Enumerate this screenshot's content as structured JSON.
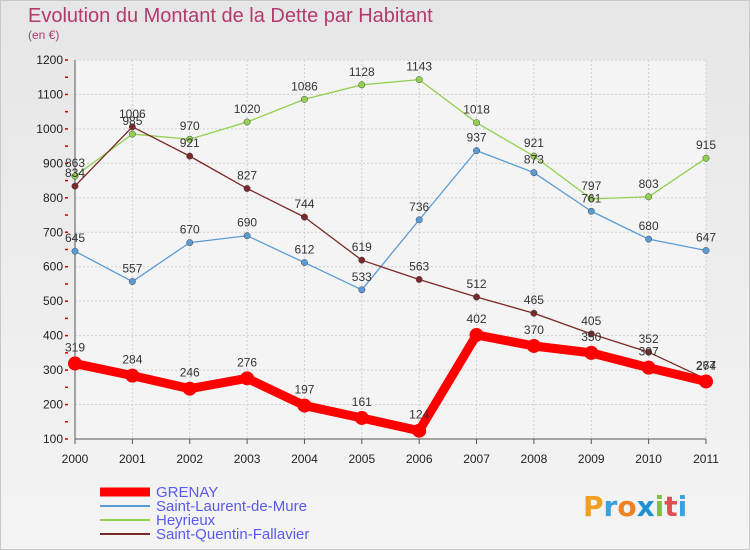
{
  "chart_data": {
    "type": "line",
    "title": "Evolution du Montant de la Dette par Habitant",
    "subtitle": "(en €)",
    "x": [
      "2000",
      "2001",
      "2002",
      "2003",
      "2004",
      "2005",
      "2006",
      "2007",
      "2008",
      "2009",
      "2010",
      "2011"
    ],
    "ylim": [
      100,
      1200
    ],
    "yticks": [
      100,
      200,
      300,
      400,
      500,
      600,
      700,
      800,
      900,
      1000,
      1100,
      1200
    ],
    "grid": true,
    "legend_position": "bottom-left",
    "series": [
      {
        "name": "GRENAY",
        "color": "#ff0000",
        "values": [
          319,
          284,
          246,
          276,
          197,
          161,
          124,
          402,
          370,
          350,
          307,
          267
        ]
      },
      {
        "name": "Saint-Laurent-de-Mure",
        "color": "#5b9bd5",
        "values": [
          645,
          557,
          670,
          690,
          612,
          533,
          736,
          937,
          873,
          761,
          680,
          647
        ]
      },
      {
        "name": "Heyrieux",
        "color": "#92d050",
        "values": [
          863,
          985,
          970,
          1020,
          1086,
          1128,
          1143,
          1018,
          921,
          797,
          803,
          915
        ]
      },
      {
        "name": "Saint-Quentin-Fallavier",
        "color": "#7b2828",
        "values": [
          834,
          1006,
          921,
          827,
          744,
          619,
          563,
          512,
          465,
          405,
          352,
          274
        ]
      }
    ]
  },
  "brand": {
    "letters": [
      "P",
      "r",
      "o",
      "x",
      "i",
      "t",
      "i"
    ],
    "colors": [
      "#f0a020",
      "#3aa0e0",
      "#f08020",
      "#2090d0",
      "#80c040",
      "#e05050",
      "#3aa0e0"
    ]
  }
}
